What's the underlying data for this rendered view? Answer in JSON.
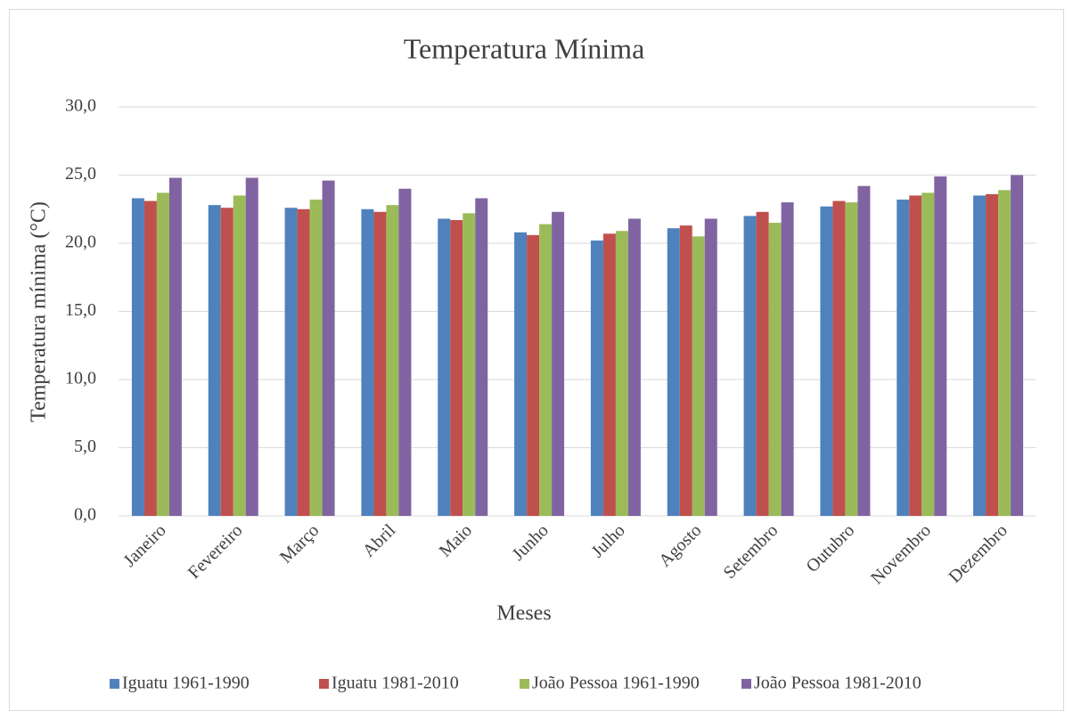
{
  "chart_data": {
    "type": "bar",
    "title": "Temperatura Mínima",
    "x_label": "Meses",
    "y_label": "Temperatura mínima (°C)",
    "categories": [
      "Janeiro",
      "Fevereiro",
      "Março",
      "Abril",
      "Maio",
      "Junho",
      "Julho",
      "Agosto",
      "Setembro",
      "Outubro",
      "Novembro",
      "Dezembro"
    ],
    "series": [
      {
        "name": "Iguatu 1961-1990",
        "color": "#4f81bd",
        "values": [
          23.3,
          22.8,
          22.6,
          22.5,
          21.8,
          20.8,
          20.2,
          21.1,
          22.0,
          22.7,
          23.2,
          23.5
        ]
      },
      {
        "name": "Iguatu 1981-2010",
        "color": "#c0504d",
        "values": [
          23.1,
          22.6,
          22.5,
          22.3,
          21.7,
          20.6,
          20.7,
          21.3,
          22.3,
          23.1,
          23.5,
          23.6
        ]
      },
      {
        "name": "João Pessoa 1961-1990",
        "color": "#9bbb59",
        "values": [
          23.7,
          23.5,
          23.2,
          22.8,
          22.2,
          21.4,
          20.9,
          20.5,
          21.5,
          23.0,
          23.7,
          23.9
        ]
      },
      {
        "name": "João Pessoa 1981-2010",
        "color": "#8064a2",
        "values": [
          24.8,
          24.8,
          24.6,
          24.0,
          23.3,
          22.3,
          21.8,
          21.8,
          23.0,
          24.2,
          24.9,
          25.0
        ]
      }
    ],
    "ylim": [
      0,
      30
    ],
    "yticks": [
      {
        "value": 0,
        "label": "0,0"
      },
      {
        "value": 5,
        "label": "5,0"
      },
      {
        "value": 10,
        "label": "10,0"
      },
      {
        "value": 15,
        "label": "15,0"
      },
      {
        "value": 20,
        "label": "20,0"
      },
      {
        "value": 25,
        "label": "25,0"
      },
      {
        "value": 30,
        "label": "30,0"
      }
    ],
    "grid": true,
    "legend": "bottom"
  }
}
